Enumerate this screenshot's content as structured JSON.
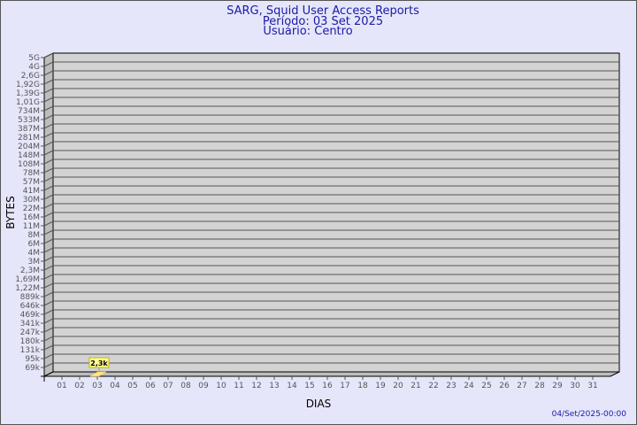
{
  "header": {
    "title": "SARG, Squid User Access Reports",
    "period": "Período: 03 Set 2025",
    "user": "Usuário: Centro"
  },
  "footer": {
    "timestamp": "04/Set/2025-00:00"
  },
  "chart_data": {
    "type": "bar",
    "title": "SARG, Squid User Access Reports",
    "xlabel": "DIAS",
    "ylabel": "BYTES",
    "categories": [
      "01",
      "02",
      "03",
      "04",
      "05",
      "06",
      "07",
      "08",
      "09",
      "10",
      "11",
      "12",
      "13",
      "14",
      "15",
      "16",
      "17",
      "18",
      "19",
      "20",
      "21",
      "22",
      "23",
      "24",
      "25",
      "26",
      "27",
      "28",
      "29",
      "30",
      "31"
    ],
    "y_tick_labels": [
      "5G",
      "4G",
      "2,6G",
      "1,92G",
      "1,39G",
      "1,01G",
      "734M",
      "533M",
      "387M",
      "281M",
      "204M",
      "148M",
      "108M",
      "78M",
      "57M",
      "41M",
      "30M",
      "22M",
      "16M",
      "11M",
      "8M",
      "6M",
      "4M",
      "3M",
      "2,3M",
      "1,69M",
      "1,22M",
      "889k",
      "646k",
      "469k",
      "341k",
      "247k",
      "180k",
      "131k",
      "95k",
      "69k"
    ],
    "values": [
      null,
      null,
      2300,
      null,
      null,
      null,
      null,
      null,
      null,
      null,
      null,
      null,
      null,
      null,
      null,
      null,
      null,
      null,
      null,
      null,
      null,
      null,
      null,
      null,
      null,
      null,
      null,
      null,
      null,
      null,
      null
    ],
    "data_labels": {
      "03": "2,3k"
    },
    "grid": true,
    "colors": {
      "wall": "#d3d3d3",
      "bar": "#ffe680",
      "bar_label_bg": "#ffff99",
      "title": "#1a1aa6"
    }
  }
}
